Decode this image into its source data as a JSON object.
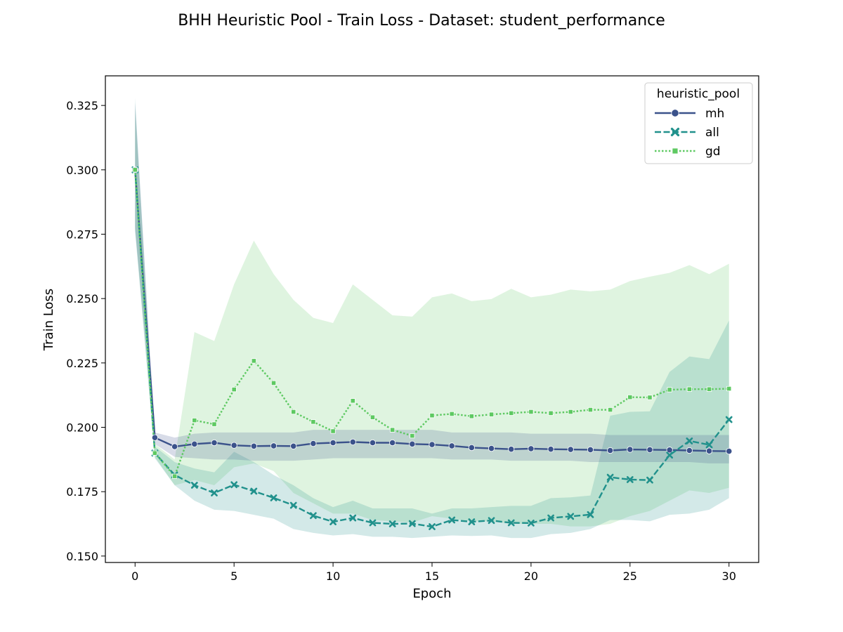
{
  "chart_data": {
    "type": "line",
    "title": "BHH Heuristic Pool - Train Loss - Dataset: student_performance",
    "xlabel": "Epoch",
    "ylabel": "Train Loss",
    "xlim": [
      -1.5,
      31.5
    ],
    "ylim": [
      0.1475,
      0.3365
    ],
    "xticks": [
      0,
      5,
      10,
      15,
      20,
      25,
      30
    ],
    "yticks": [
      0.15,
      0.175,
      0.2,
      0.225,
      0.25,
      0.275,
      0.3,
      0.325
    ],
    "ytick_labels": [
      "0.150",
      "0.175",
      "0.200",
      "0.225",
      "0.250",
      "0.275",
      "0.300",
      "0.325"
    ],
    "grid": false,
    "legend": {
      "title": "heuristic_pool",
      "position": "top-right"
    },
    "x": [
      0,
      1,
      2,
      3,
      4,
      5,
      6,
      7,
      8,
      9,
      10,
      11,
      12,
      13,
      14,
      15,
      16,
      17,
      18,
      19,
      20,
      21,
      22,
      23,
      24,
      25,
      26,
      27,
      28,
      29,
      30
    ],
    "series": [
      {
        "name": "mh",
        "color": "#3b528b",
        "dash": "solid",
        "marker": "circle",
        "values": [
          0.3,
          0.196,
          0.1925,
          0.1935,
          0.194,
          0.193,
          0.1927,
          0.1928,
          0.1927,
          0.1937,
          0.194,
          0.1943,
          0.194,
          0.194,
          0.1935,
          0.1933,
          0.1928,
          0.1921,
          0.1918,
          0.1915,
          0.1917,
          0.1915,
          0.1914,
          0.1913,
          0.191,
          0.1914,
          0.1913,
          0.1912,
          0.191,
          0.1908,
          0.1907
        ],
        "lower": [
          0.277,
          0.1935,
          0.1885,
          0.188,
          0.1875,
          0.1875,
          0.187,
          0.187,
          0.187,
          0.1875,
          0.188,
          0.188,
          0.188,
          0.188,
          0.188,
          0.188,
          0.1875,
          0.1875,
          0.1875,
          0.187,
          0.187,
          0.187,
          0.187,
          0.1865,
          0.1865,
          0.1865,
          0.1865,
          0.1865,
          0.1865,
          0.186,
          0.186
        ],
        "upper": [
          0.326,
          0.198,
          0.196,
          0.1975,
          0.198,
          0.198,
          0.198,
          0.198,
          0.198,
          0.199,
          0.199,
          0.199,
          0.199,
          0.199,
          0.199,
          0.199,
          0.198,
          0.198,
          0.198,
          0.198,
          0.1975,
          0.1975,
          0.1975,
          0.1975,
          0.197,
          0.197,
          0.197,
          0.197,
          0.197,
          0.197,
          0.197
        ]
      },
      {
        "name": "all",
        "color": "#21918c",
        "dash": "dashed",
        "marker": "x",
        "values": [
          0.3,
          0.19,
          0.1815,
          0.1775,
          0.1745,
          0.1777,
          0.1752,
          0.1726,
          0.1697,
          0.1657,
          0.1633,
          0.1648,
          0.1629,
          0.1625,
          0.1626,
          0.1614,
          0.164,
          0.1633,
          0.1638,
          0.1629,
          0.1628,
          0.1648,
          0.1654,
          0.1661,
          0.1806,
          0.1797,
          0.1795,
          0.1892,
          0.1947,
          0.1932,
          0.203
        ],
        "lower": [
          0.276,
          0.188,
          0.1775,
          0.1715,
          0.168,
          0.1675,
          0.166,
          0.1645,
          0.1605,
          0.159,
          0.158,
          0.1585,
          0.1575,
          0.1575,
          0.157,
          0.1575,
          0.158,
          0.1578,
          0.158,
          0.157,
          0.157,
          0.1585,
          0.159,
          0.1605,
          0.164,
          0.164,
          0.1635,
          0.166,
          0.1665,
          0.168,
          0.1725
        ],
        "upper": [
          0.328,
          0.1925,
          0.1865,
          0.184,
          0.1825,
          0.1905,
          0.1865,
          0.1815,
          0.1775,
          0.1725,
          0.169,
          0.1715,
          0.1685,
          0.1685,
          0.1685,
          0.1665,
          0.1685,
          0.1685,
          0.169,
          0.1695,
          0.1695,
          0.1725,
          0.1728,
          0.1735,
          0.2045,
          0.206,
          0.2062,
          0.2215,
          0.2275,
          0.2265,
          0.2415
        ]
      },
      {
        "name": "gd",
        "color": "#5ec962",
        "dash": "dotted",
        "marker": "square",
        "values": [
          0.3,
          0.19,
          0.181,
          0.2027,
          0.2012,
          0.2147,
          0.2258,
          0.2172,
          0.206,
          0.2021,
          0.1985,
          0.2103,
          0.2039,
          0.199,
          0.1967,
          0.2046,
          0.2052,
          0.2043,
          0.205,
          0.2055,
          0.206,
          0.2055,
          0.206,
          0.2068,
          0.2068,
          0.2117,
          0.2116,
          0.2146,
          0.2148,
          0.2148,
          0.215
        ],
        "lower": [
          0.278,
          0.1885,
          0.1775,
          0.1795,
          0.1775,
          0.1845,
          0.186,
          0.183,
          0.1745,
          0.1705,
          0.1665,
          0.1665,
          0.164,
          0.1635,
          0.163,
          0.1655,
          0.1645,
          0.1635,
          0.1635,
          0.1625,
          0.1625,
          0.1625,
          0.1615,
          0.1615,
          0.1625,
          0.1655,
          0.1675,
          0.1715,
          0.1755,
          0.1745,
          0.1765
        ],
        "upper": [
          0.324,
          0.1935,
          0.1875,
          0.237,
          0.2335,
          0.2555,
          0.2725,
          0.2595,
          0.2495,
          0.2425,
          0.2405,
          0.2555,
          0.2495,
          0.2435,
          0.243,
          0.2505,
          0.252,
          0.249,
          0.2498,
          0.2538,
          0.2505,
          0.2515,
          0.2535,
          0.2528,
          0.2535,
          0.2568,
          0.2585,
          0.26,
          0.263,
          0.2595,
          0.2635
        ]
      }
    ]
  }
}
